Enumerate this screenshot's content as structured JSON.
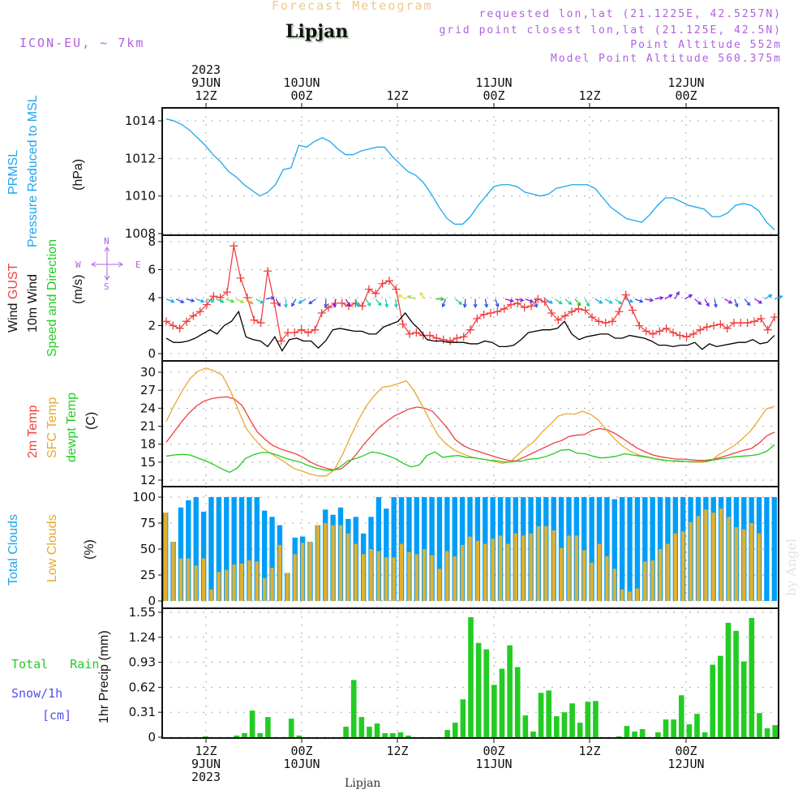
{
  "header": {
    "title": "Forecast Meteogram",
    "station": "Lipjan",
    "model": "ICON-EU, ~ 7km",
    "requested": "requested lon,lat (21.1225E, 42.5257N)",
    "grid_point": "grid point closest lon,lat (21.125E, 42.5N)",
    "point_altitude": "Point Altitude 552m",
    "model_altitude": "Model Point Altitude 560.375m"
  },
  "time_axis_top": [
    {
      "l1": "2023",
      "l2": "9JUN",
      "l3": "12Z"
    },
    {
      "l1": "",
      "l2": "10JUN",
      "l3": "00Z"
    },
    {
      "l1": "",
      "l2": "",
      "l3": "12Z"
    },
    {
      "l1": "",
      "l2": "11JUN",
      "l3": "00Z"
    },
    {
      "l1": "",
      "l2": "",
      "l3": "12Z"
    },
    {
      "l1": "",
      "l2": "12JUN",
      "l3": "00Z"
    }
  ],
  "time_axis_bottom": [
    {
      "l1": "12Z",
      "l2": "9JUN",
      "l3": "2023"
    },
    {
      "l1": "00Z",
      "l2": "10JUN",
      "l3": ""
    },
    {
      "l1": "12Z",
      "l2": "",
      "l3": ""
    },
    {
      "l1": "00Z",
      "l2": "11JUN",
      "l3": ""
    },
    {
      "l1": "12Z",
      "l2": "",
      "l3": ""
    },
    {
      "l1": "00Z",
      "l2": "12JUN",
      "l3": ""
    }
  ],
  "footer": {
    "station": "Lipjan",
    "watermark": "by Angel"
  },
  "panels_labels": {
    "pressure": {
      "l1": "PRMSL",
      "l2": "Pressure Reduced to MSL",
      "unit": "(hPa)"
    },
    "wind": {
      "l1a": "Wind ",
      "l1b": "GUST",
      "l2": "10m Wind",
      "l3": "Speed and Direction",
      "unit": "(m/s)",
      "compass": {
        "n": "N",
        "s": "S",
        "w": "W",
        "e": "E"
      }
    },
    "temp": {
      "l1": "2m Temp",
      "l2": "SFC Temp",
      "l3": "dewpt Temp",
      "unit": "(C)"
    },
    "clouds": {
      "l1": "Total Clouds",
      "l2": "Low Clouds",
      "unit": "(%)"
    },
    "precip": {
      "l1a": "Total",
      "l1b": "Rain",
      "l2": "Snow/1h",
      "l3": "[cm]",
      "unit": "1hr Precip (mm)"
    }
  },
  "colors": {
    "pressure": "#1ea6ee",
    "gust": "#f04040",
    "wind": "#000000",
    "temp2m": "#f04040",
    "sfc": "#e8a830",
    "dewpt": "#22cc22",
    "total_clouds": "#009ef8",
    "low_clouds": "#e0b030",
    "rain": "#22cc22",
    "snow": "#5050f0",
    "meta": "#b060e0"
  },
  "chart_data": [
    {
      "type": "line",
      "title": "PRMSL Pressure Reduced to MSL",
      "ylabel": "(hPa)",
      "ylim": [
        1008,
        1014.6
      ],
      "yticks": [
        "1008",
        "1010",
        "1012",
        "1014"
      ],
      "x_start": "2023-06-09T07Z",
      "x_step_hours": 1,
      "series": [
        {
          "name": "PRMSL",
          "values": [
            1014.1,
            1014.0,
            1013.8,
            1013.5,
            1013.1,
            1012.7,
            1012.2,
            1011.8,
            1011.3,
            1011.0,
            1010.6,
            1010.3,
            1010.0,
            1010.2,
            1010.6,
            1011.4,
            1011.5,
            1012.7,
            1012.6,
            1012.9,
            1013.1,
            1012.9,
            1012.5,
            1012.2,
            1012.2,
            1012.4,
            1012.5,
            1012.6,
            1012.6,
            1012.1,
            1011.7,
            1011.3,
            1011.1,
            1010.7,
            1010.1,
            1009.4,
            1008.8,
            1008.5,
            1008.5,
            1008.9,
            1009.5,
            1010.0,
            1010.5,
            1010.6,
            1010.6,
            1010.5,
            1010.2,
            1010.1,
            1010.0,
            1010.1,
            1010.4,
            1010.5,
            1010.6,
            1010.6,
            1010.6,
            1010.4,
            1009.9,
            1009.4,
            1009.1,
            1008.8,
            1008.7,
            1008.6,
            1009.0,
            1009.5,
            1009.9,
            1009.9,
            1009.7,
            1009.5,
            1009.4,
            1009.3,
            1008.9,
            1008.9,
            1009.1,
            1009.5,
            1009.6,
            1009.5,
            1009.2,
            1008.6,
            1008.2
          ]
        }
      ]
    },
    {
      "type": "line",
      "title": "Wind GUST / 10m Wind Speed and Direction",
      "ylabel": "(m/s)",
      "ylim": [
        -0.3,
        8.2
      ],
      "yticks": [
        "0",
        "2",
        "4",
        "6",
        "8"
      ],
      "x_start": "2023-06-09T07Z",
      "x_step_hours": 1,
      "series": [
        {
          "name": "Wind GUST",
          "values": [
            2.3,
            2.0,
            1.8,
            2.3,
            2.7,
            3.0,
            3.5,
            4.1,
            4.0,
            4.4,
            7.7,
            5.4,
            4.0,
            2.4,
            2.2,
            5.9,
            3.6,
            0.9,
            1.5,
            1.5,
            1.7,
            1.5,
            1.7,
            2.9,
            3.3,
            3.6,
            3.6,
            3.4,
            3.6,
            3.4,
            4.6,
            4.3,
            5.0,
            5.2,
            4.6,
            2.1,
            1.4,
            1.5,
            1.3,
            1.3,
            1.1,
            1.0,
            0.9,
            1.1,
            1.2,
            1.7,
            2.5,
            2.8,
            2.9,
            3.0,
            3.2,
            3.5,
            3.6,
            3.3,
            3.4,
            3.9,
            3.7,
            2.9,
            2.4,
            2.7,
            3.0,
            3.2,
            3.1,
            2.6,
            2.3,
            2.2,
            2.3,
            3.0,
            4.2,
            3.1,
            2.0,
            1.6,
            1.4,
            1.6,
            1.8,
            1.5,
            1.3,
            1.2,
            1.4,
            1.7,
            1.9,
            2.0,
            2.1,
            1.8,
            2.2,
            2.2,
            2.2,
            2.3,
            2.5,
            1.7,
            2.6
          ]
        },
        {
          "name": "10m Wind",
          "values": [
            1.1,
            0.8,
            0.8,
            0.9,
            1.1,
            1.4,
            1.7,
            1.4,
            2.0,
            2.3,
            3.0,
            1.2,
            1.0,
            0.9,
            0.5,
            1.2,
            0.2,
            1.0,
            1.1,
            0.9,
            0.9,
            0.4,
            0.9,
            1.7,
            1.8,
            1.7,
            1.6,
            1.6,
            1.4,
            1.4,
            1.9,
            2.1,
            2.3,
            2.9,
            2.2,
            1.7,
            1.0,
            0.9,
            0.9,
            0.8,
            0.8,
            0.8,
            0.7,
            0.7,
            0.9,
            0.8,
            0.5,
            0.5,
            0.6,
            1.0,
            1.5,
            1.6,
            1.7,
            1.7,
            1.8,
            2.3,
            1.4,
            1.0,
            1.2,
            1.3,
            1.4,
            1.4,
            1.1,
            1.1,
            1.3,
            1.2,
            1.1,
            0.9,
            0.6,
            0.6,
            0.5,
            0.6,
            0.6,
            0.8,
            0.3,
            0.7,
            0.5,
            0.6,
            0.7,
            0.8,
            0.8,
            1.0,
            0.7,
            0.8,
            1.3
          ]
        }
      ],
      "direction_arrows": "colored wind-direction arrows drawn along the 4 m/s line, color-coded by speed"
    },
    {
      "type": "line",
      "title": "2m Temp / SFC Temp / dewpt Temp",
      "ylabel": "(C)",
      "ylim": [
        11.5,
        31.5
      ],
      "yticks": [
        "12",
        "15",
        "18",
        "21",
        "24",
        "27",
        "30"
      ],
      "x_start": "2023-06-09T07Z",
      "x_step_hours": 1,
      "series": [
        {
          "name": "2m Temp",
          "values": [
            18.3,
            20.0,
            21.7,
            23.2,
            24.4,
            25.2,
            25.6,
            25.8,
            25.9,
            25.5,
            24.4,
            22.1,
            20.0,
            18.8,
            17.8,
            17.2,
            16.8,
            16.4,
            15.8,
            15.0,
            14.4,
            14.0,
            13.7,
            13.9,
            14.9,
            16.3,
            18.0,
            19.4,
            20.8,
            21.8,
            22.7,
            23.3,
            23.9,
            24.2,
            24.0,
            23.5,
            22.1,
            20.6,
            18.8,
            17.8,
            17.2,
            16.8,
            16.4,
            16.0,
            15.6,
            15.3,
            15.2,
            15.8,
            16.4,
            17.0,
            17.6,
            18.2,
            18.6,
            19.3,
            19.5,
            19.6,
            20.3,
            20.6,
            20.4,
            19.8,
            19.0,
            18.1,
            17.3,
            16.7,
            16.2,
            15.9,
            15.7,
            15.5,
            15.5,
            15.4,
            15.3,
            15.3,
            15.5,
            15.8,
            16.2,
            16.6,
            17.0,
            17.3,
            18.2,
            19.4,
            20.0
          ]
        },
        {
          "name": "SFC Temp",
          "values": [
            21.8,
            24.5,
            26.9,
            29.0,
            30.2,
            30.7,
            30.2,
            29.5,
            27.0,
            23.7,
            20.6,
            18.9,
            17.4,
            16.5,
            15.7,
            14.8,
            13.9,
            13.5,
            13.0,
            12.7,
            12.7,
            13.7,
            16.2,
            19.2,
            22.0,
            24.4,
            26.1,
            27.5,
            27.7,
            28.1,
            28.6,
            26.8,
            24.4,
            21.8,
            19.4,
            18.0,
            17.0,
            16.4,
            15.9,
            15.6,
            15.4,
            15.1,
            14.8,
            15.1,
            16.3,
            17.5,
            18.5,
            20.1,
            21.3,
            22.7,
            23.1,
            23.0,
            23.5,
            23.0,
            22.0,
            20.4,
            18.9,
            17.7,
            16.8,
            16.2,
            15.9,
            15.6,
            15.4,
            15.2,
            15.1,
            15.1,
            15.0,
            15.0,
            15.2,
            16.2,
            17.0,
            17.8,
            18.9,
            20.2,
            22.0,
            23.9,
            24.3
          ]
        },
        {
          "name": "dewpt Temp",
          "values": [
            16.0,
            16.2,
            16.3,
            16.2,
            15.7,
            15.2,
            14.6,
            13.9,
            13.3,
            14.0,
            15.6,
            16.2,
            16.6,
            16.6,
            16.2,
            15.7,
            15.3,
            15.0,
            14.4,
            14.0,
            13.7,
            13.6,
            14.2,
            15.2,
            15.6,
            16.1,
            16.7,
            16.5,
            16.1,
            15.6,
            14.8,
            14.2,
            14.5,
            16.1,
            16.7,
            15.8,
            16.0,
            16.1,
            15.8,
            15.7,
            15.5,
            15.3,
            15.2,
            15.0,
            15.1,
            15.2,
            15.5,
            15.6,
            15.9,
            16.4,
            17.0,
            17.1,
            16.5,
            16.4,
            16.0,
            15.7,
            15.8,
            16.0,
            16.4,
            16.2,
            16.0,
            15.8,
            15.5,
            15.3,
            15.2,
            15.2,
            15.1,
            15.1,
            15.1,
            15.3,
            15.5,
            15.7,
            15.9,
            16.0,
            16.1,
            16.3,
            16.8,
            17.9
          ]
        }
      ]
    },
    {
      "type": "bar",
      "title": "Total Clouds / Low Clouds",
      "ylabel": "(%)",
      "ylim": [
        0,
        100
      ],
      "yticks": [
        "0",
        "25",
        "50",
        "75",
        "100"
      ],
      "x_start": "2023-06-09T07Z",
      "x_step_hours": 1,
      "series": [
        {
          "name": "Total Clouds",
          "values": [
            85,
            57,
            90,
            97,
            100,
            86,
            100,
            100,
            100,
            100,
            100,
            100,
            100,
            87,
            81,
            73,
            27,
            61,
            62,
            57,
            73,
            88,
            83,
            90,
            79,
            81,
            65,
            81,
            100,
            89,
            100,
            100,
            100,
            100,
            100,
            100,
            100,
            100,
            100,
            100,
            100,
            100,
            100,
            100,
            100,
            100,
            100,
            100,
            100,
            100,
            100,
            100,
            100,
            100,
            100,
            100,
            100,
            100,
            100,
            98,
            100,
            100,
            100,
            100,
            100,
            100,
            100,
            100,
            100,
            100,
            100,
            100,
            100,
            100,
            100,
            100,
            100,
            100,
            100,
            100,
            100
          ]
        },
        {
          "name": "Low Clouds",
          "values": [
            85,
            57,
            41,
            41,
            34,
            41,
            11,
            28,
            30,
            35,
            36,
            39,
            38,
            22,
            32,
            54,
            27,
            45,
            56,
            57,
            73,
            75,
            73,
            73,
            65,
            55,
            45,
            50,
            48,
            42,
            42,
            55,
            47,
            45,
            50,
            44,
            31,
            48,
            43,
            54,
            62,
            58,
            55,
            60,
            63,
            55,
            65,
            63,
            65,
            72,
            72,
            68,
            51,
            63,
            63,
            49,
            37,
            55,
            43,
            31,
            11,
            9,
            12,
            38,
            39,
            50,
            55,
            65,
            67,
            76,
            82,
            88,
            85,
            89,
            81,
            71,
            69,
            75,
            65
          ]
        }
      ]
    },
    {
      "type": "bar",
      "title": "Total Rain / Snow 1h",
      "ylabel": "1hr Precip (mm)",
      "ylim": [
        0,
        1.55
      ],
      "yticks": [
        "0",
        "0.31",
        "0.62",
        "0.93",
        "1.24",
        "1.55"
      ],
      "x_start": "2023-06-09T07Z",
      "x_step_hours": 1,
      "series": [
        {
          "name": "Total Rain",
          "values": [
            0,
            0,
            0,
            0,
            0,
            0.01,
            0,
            0,
            0,
            0.02,
            0.05,
            0.33,
            0.05,
            0.25,
            0,
            0,
            0.23,
            0.02,
            0,
            0,
            0,
            0,
            0,
            0.13,
            0.71,
            0.25,
            0.13,
            0.17,
            0.05,
            0.05,
            0.06,
            0.02,
            0,
            0,
            0,
            0,
            0.09,
            0.18,
            0.47,
            1.49,
            1.17,
            1.09,
            0.65,
            0.85,
            1.14,
            0.87,
            0.27,
            0.07,
            0.55,
            0.58,
            0.26,
            0.31,
            0.42,
            0.18,
            0.44,
            0.45,
            0,
            0,
            0.01,
            0.14,
            0.07,
            0.1,
            0,
            0.06,
            0.22,
            0.22,
            0.52,
            0.16,
            0.29,
            0.06,
            0.9,
            1.01,
            1.42,
            1.32,
            0.94,
            1.48,
            0.3,
            0.11,
            0.15
          ]
        },
        {
          "name": "Snow/1h",
          "values": []
        }
      ]
    }
  ]
}
